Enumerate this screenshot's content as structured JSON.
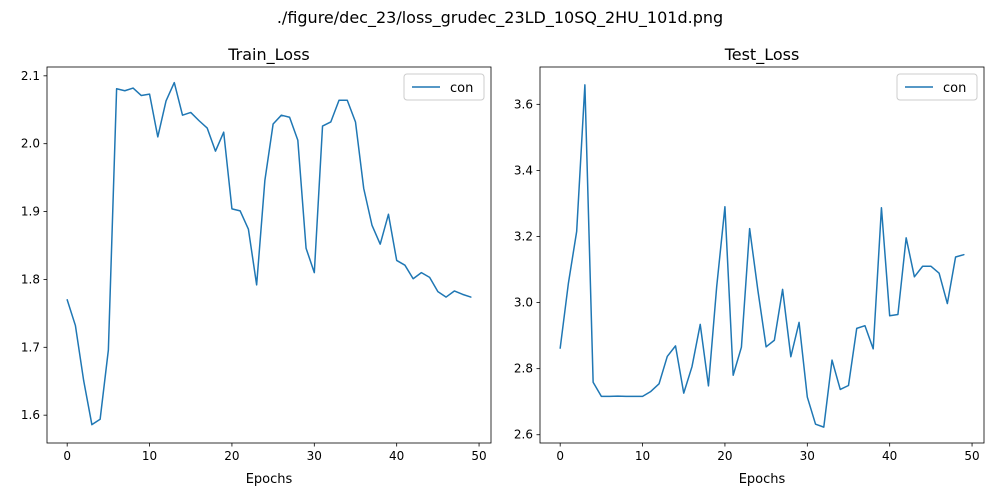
{
  "figure_title": "./figure/dec_23/loss_grudec_23LD_10SQ_2HU_101d.png",
  "chart_data": [
    {
      "type": "line",
      "title": "Train_Loss",
      "xlabel": "Epochs",
      "ylabel": "",
      "xlim": [
        -2.45,
        51.45
      ],
      "ylim": [
        1.559,
        2.113
      ],
      "xticks": [
        0,
        10,
        20,
        30,
        40,
        50
      ],
      "xtick_labels": [
        "0",
        "10",
        "20",
        "30",
        "40",
        "50"
      ],
      "yticks": [
        1.6,
        1.7,
        1.8,
        1.9,
        2.0,
        2.1
      ],
      "ytick_labels": [
        "1.6",
        "1.7",
        "1.8",
        "1.9",
        "2.0",
        "2.1"
      ],
      "legend_position": "top-right",
      "grid": false,
      "series": [
        {
          "name": "con",
          "color": "#1f77b4",
          "x": [
            0,
            1,
            2,
            3,
            4,
            5,
            6,
            7,
            8,
            9,
            10,
            11,
            12,
            13,
            14,
            15,
            16,
            17,
            18,
            19,
            20,
            21,
            22,
            23,
            24,
            25,
            26,
            27,
            28,
            29,
            30,
            31,
            32,
            33,
            34,
            35,
            36,
            37,
            38,
            39,
            40,
            41,
            42,
            43,
            44,
            45,
            46,
            47,
            48,
            49
          ],
          "values": [
            1.77,
            1.732,
            1.651,
            1.586,
            1.594,
            1.696,
            2.081,
            2.078,
            2.082,
            2.071,
            2.073,
            2.01,
            2.063,
            2.09,
            2.042,
            2.046,
            2.034,
            2.023,
            1.989,
            2.017,
            1.904,
            1.901,
            1.874,
            1.792,
            1.946,
            2.029,
            2.042,
            2.039,
            2.005,
            1.846,
            1.81,
            2.026,
            2.032,
            2.064,
            2.064,
            2.032,
            1.934,
            1.88,
            1.852,
            1.896,
            1.828,
            1.821,
            1.801,
            1.81,
            1.803,
            1.782,
            1.774,
            1.783,
            1.778,
            1.774
          ]
        }
      ]
    },
    {
      "type": "line",
      "title": "Test_Loss",
      "xlabel": "Epochs",
      "ylabel": "",
      "xlim": [
        -2.45,
        51.45
      ],
      "ylim": [
        2.575,
        3.713
      ],
      "xticks": [
        0,
        10,
        20,
        30,
        40,
        50
      ],
      "xtick_labels": [
        "0",
        "10",
        "20",
        "30",
        "40",
        "50"
      ],
      "yticks": [
        2.6,
        2.8,
        3.0,
        3.2,
        3.4,
        3.6
      ],
      "ytick_labels": [
        "2.6",
        "2.8",
        "3.0",
        "3.2",
        "3.4",
        "3.6"
      ],
      "legend_position": "top-right",
      "grid": false,
      "series": [
        {
          "name": "con",
          "color": "#1f77b4",
          "x": [
            0,
            1,
            2,
            3,
            4,
            5,
            6,
            7,
            8,
            9,
            10,
            11,
            12,
            13,
            14,
            15,
            16,
            17,
            18,
            19,
            20,
            21,
            22,
            23,
            24,
            25,
            26,
            27,
            28,
            29,
            30,
            31,
            32,
            33,
            34,
            35,
            36,
            37,
            38,
            39,
            40,
            41,
            42,
            43,
            44,
            45,
            46,
            47,
            48,
            49
          ],
          "values": [
            2.862,
            3.059,
            3.215,
            3.659,
            2.759,
            2.716,
            2.716,
            2.717,
            2.716,
            2.716,
            2.716,
            2.731,
            2.754,
            2.837,
            2.869,
            2.726,
            2.806,
            2.934,
            2.748,
            3.048,
            3.29,
            2.78,
            2.865,
            3.224,
            3.037,
            2.866,
            2.886,
            3.04,
            2.836,
            2.94,
            2.714,
            2.632,
            2.623,
            2.826,
            2.737,
            2.749,
            2.922,
            2.93,
            2.86,
            3.287,
            2.96,
            2.964,
            3.196,
            3.078,
            3.11,
            3.11,
            3.089,
            2.997,
            3.138,
            3.145
          ]
        }
      ]
    }
  ]
}
